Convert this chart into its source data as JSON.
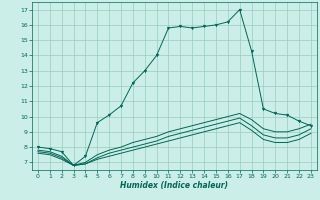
{
  "xlabel": "Humidex (Indice chaleur)",
  "xlim": [
    -0.5,
    23.5
  ],
  "ylim": [
    6.5,
    17.5
  ],
  "xticks": [
    0,
    1,
    2,
    3,
    4,
    5,
    6,
    7,
    8,
    9,
    10,
    11,
    12,
    13,
    14,
    15,
    16,
    17,
    18,
    19,
    20,
    21,
    22,
    23
  ],
  "yticks": [
    7,
    8,
    9,
    10,
    11,
    12,
    13,
    14,
    15,
    16,
    17
  ],
  "background_color": "#cceee8",
  "grid_color": "#99ccbb",
  "line_color": "#006655",
  "line1": [
    8.0,
    7.9,
    7.7,
    6.8,
    7.4,
    9.6,
    10.1,
    10.7,
    12.2,
    13.0,
    14.0,
    15.8,
    15.9,
    15.8,
    15.9,
    16.0,
    16.2,
    17.0,
    14.3,
    10.5,
    10.2,
    10.1,
    9.7,
    9.4
  ],
  "line2": [
    7.8,
    7.7,
    7.4,
    6.8,
    7.0,
    7.5,
    7.8,
    8.0,
    8.3,
    8.5,
    8.7,
    9.0,
    9.2,
    9.4,
    9.6,
    9.8,
    10.0,
    10.2,
    9.8,
    9.2,
    9.0,
    9.0,
    9.2,
    9.5
  ],
  "line3": [
    7.7,
    7.6,
    7.3,
    6.8,
    6.9,
    7.3,
    7.6,
    7.8,
    8.0,
    8.2,
    8.4,
    8.7,
    8.9,
    9.1,
    9.3,
    9.5,
    9.7,
    9.9,
    9.4,
    8.8,
    8.6,
    8.6,
    8.8,
    9.2
  ],
  "line4": [
    7.6,
    7.5,
    7.2,
    6.8,
    6.9,
    7.2,
    7.4,
    7.6,
    7.8,
    8.0,
    8.2,
    8.4,
    8.6,
    8.8,
    9.0,
    9.2,
    9.4,
    9.6,
    9.1,
    8.5,
    8.3,
    8.3,
    8.5,
    8.9
  ]
}
